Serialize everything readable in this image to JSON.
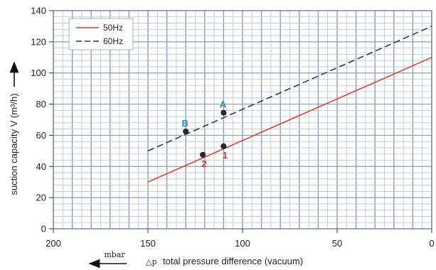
{
  "chart_data": {
    "type": "line",
    "x_axis": {
      "label": "total pressure difference (vacuum)",
      "symbol": "△p",
      "unit": "mbar",
      "min": 0,
      "max": 200,
      "reversed": true,
      "ticks": [
        200,
        150,
        100,
        50,
        0
      ],
      "tick_labels": [
        "200",
        "150",
        "100",
        "50",
        "0"
      ]
    },
    "y_axis": {
      "label": "suction capacity V (m³/h)",
      "min": 0,
      "max": 140,
      "ticks": [
        0,
        20,
        40,
        60,
        80,
        100,
        120,
        140
      ],
      "tick_labels": [
        "0",
        "20",
        "40",
        "60",
        "80",
        "100",
        "120",
        "140"
      ]
    },
    "grid": true,
    "legend_position": "top-left",
    "series": [
      {
        "name": "50Hz",
        "color": "#d9412f",
        "dash": "solid",
        "x": [
          150,
          0
        ],
        "y": [
          30,
          110
        ]
      },
      {
        "name": "60Hz",
        "color": "#2a3566",
        "dash": "dashed",
        "x": [
          150,
          0
        ],
        "y": [
          50,
          130
        ]
      }
    ],
    "points": [
      {
        "label": "A",
        "x": 110,
        "y": 74.5,
        "series": "60Hz",
        "label_color": "#2f86c6"
      },
      {
        "label": "B",
        "x": 130,
        "y": 62.5,
        "series": "60Hz",
        "label_color": "#2f86c6"
      },
      {
        "label": "1",
        "x": 110,
        "y": 53,
        "series": "50Hz",
        "label_color": "#c0392b"
      },
      {
        "label": "2",
        "x": 121,
        "y": 47.5,
        "series": "50Hz",
        "label_color": "#c0392b"
      }
    ]
  }
}
